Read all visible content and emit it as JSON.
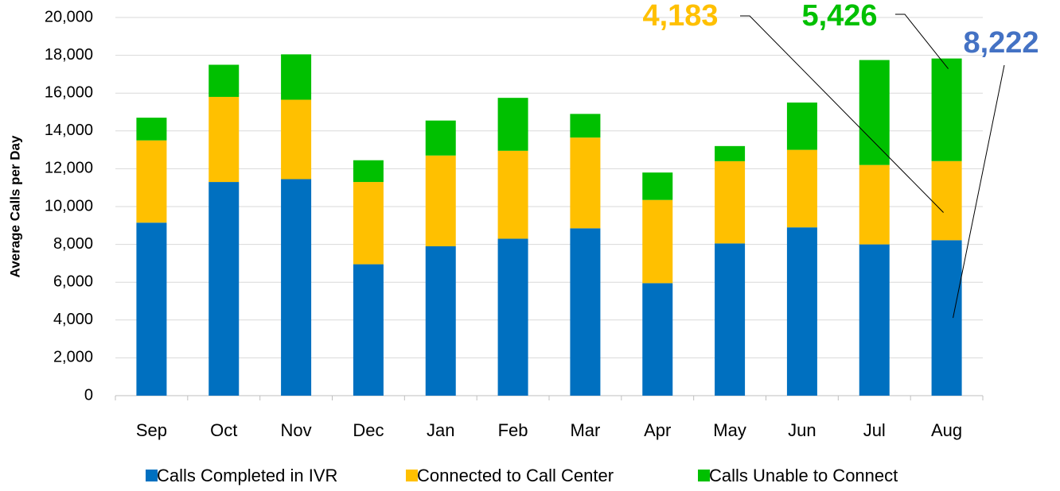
{
  "chart_data": {
    "type": "stacked_bar",
    "y_label": "Average Calls per Day",
    "categories": [
      "Sep",
      "Oct",
      "Nov",
      "Dec",
      "Jan",
      "Feb",
      "Mar",
      "Apr",
      "May",
      "Jun",
      "Jul",
      "Aug"
    ],
    "series": [
      {
        "name": "Calls Completed in IVR",
        "color": "#0070c0",
        "values": [
          9150,
          11300,
          11450,
          6950,
          7900,
          8300,
          8850,
          5950,
          8050,
          8900,
          8000,
          8222
        ]
      },
      {
        "name": "Connected to Call Center",
        "color": "#ffc000",
        "values": [
          4350,
          4500,
          4200,
          4350,
          4800,
          4650,
          4800,
          4400,
          4350,
          4100,
          4200,
          4183
        ]
      },
      {
        "name": "Calls Unable to Connect",
        "color": "#00c000",
        "values": [
          1200,
          1700,
          2400,
          1150,
          1850,
          2800,
          1250,
          1450,
          800,
          2500,
          5550,
          5426
        ]
      }
    ],
    "annotations": [
      {
        "label": "4,183",
        "color": "#ffc000"
      },
      {
        "label": "5,426",
        "color": "#00c000"
      },
      {
        "label": "8,222",
        "color": "#4472c4"
      }
    ],
    "ylim": [
      0,
      20000
    ],
    "yticks": [
      0,
      {
        "value": 2000,
        "label": "2,000"
      },
      {
        "value": 4000,
        "label": "4,000"
      },
      {
        "value": 6000,
        "label": "6,000"
      },
      {
        "value": 8000,
        "label": "8,000"
      },
      {
        "value": 10000,
        "label": "10,000"
      },
      {
        "value": 12000,
        "label": "12,000"
      },
      {
        "value": 14000,
        "label": "14,000"
      },
      {
        "value": 16000,
        "label": "16,000"
      },
      {
        "value": 18000,
        "label": "18,000"
      },
      {
        "value": 20000,
        "label": "20,000"
      }
    ],
    "grid": true,
    "legend": "bottom"
  }
}
